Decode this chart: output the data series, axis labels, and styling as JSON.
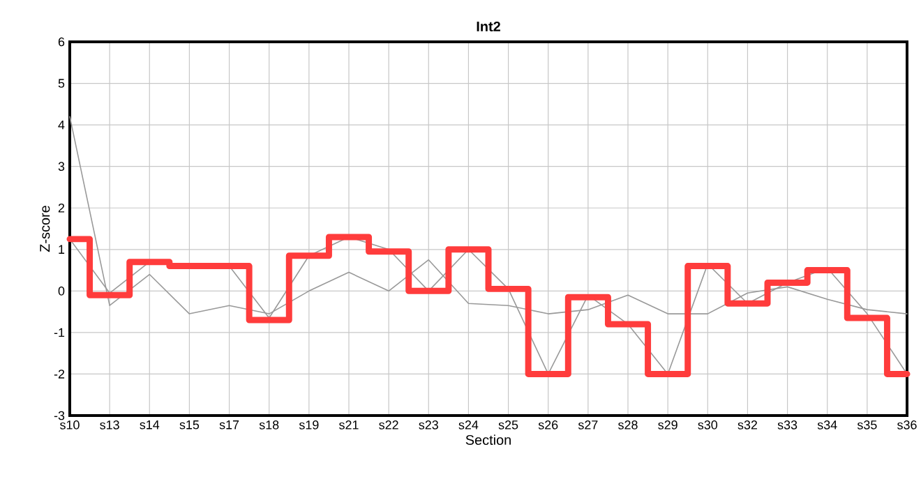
{
  "chart_data": {
    "type": "line",
    "title": "Int2",
    "xlabel": "Section",
    "ylabel": "Z-score",
    "categories": [
      "s10",
      "s13",
      "s14",
      "s15",
      "s17",
      "s18",
      "s19",
      "s21",
      "s22",
      "s23",
      "s24",
      "s25",
      "s26",
      "s27",
      "s28",
      "s29",
      "s30",
      "s32",
      "s33",
      "s34",
      "s35",
      "s36"
    ],
    "series": [
      {
        "color": "#999999",
        "values": [
          4.2,
          -0.35,
          0.4,
          -0.55,
          -0.35,
          -0.55,
          0,
          0.45,
          0,
          0.75,
          -0.3,
          -0.35,
          -0.55,
          -0.45,
          -0.1,
          -0.55,
          -0.55,
          -0.05,
          0.1,
          -0.2,
          -0.45,
          -0.55
        ]
      },
      {
        "color": "#999999",
        "values": [
          1.25,
          -0.05,
          0.7,
          0.6,
          0.6,
          -0.65,
          0.85,
          1.3,
          1.0,
          0,
          1.0,
          0.05,
          -2.0,
          -0.1,
          -0.8,
          -2.0,
          0.65,
          -0.3,
          0.2,
          0.55,
          -0.55,
          -2.0
        ]
      },
      {
        "type": "step",
        "color": "#ff3c3c",
        "values": [
          1.25,
          -0.1,
          0.7,
          0.6,
          0.6,
          -0.7,
          0.85,
          1.3,
          0.95,
          0,
          1.0,
          0.05,
          -2.0,
          -0.15,
          -0.8,
          -2.0,
          0.6,
          -0.3,
          0.2,
          0.5,
          -0.65,
          -2.0
        ]
      }
    ],
    "ylim": [
      -3,
      6
    ],
    "yticks": [
      -3,
      -2,
      -1,
      0,
      1,
      2,
      3,
      4,
      5,
      6
    ],
    "grid": true,
    "marker": "none",
    "line_style": "solid"
  }
}
